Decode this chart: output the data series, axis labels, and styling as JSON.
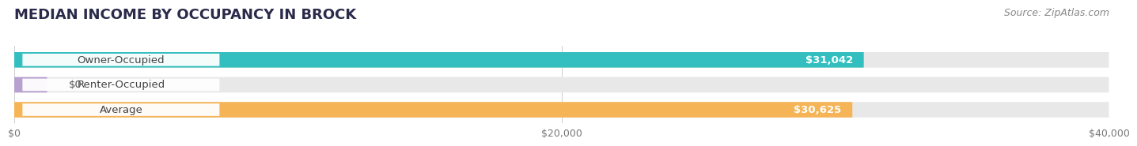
{
  "title": "MEDIAN INCOME BY OCCUPANCY IN BROCK",
  "source": "Source: ZipAtlas.com",
  "categories": [
    "Owner-Occupied",
    "Renter-Occupied",
    "Average"
  ],
  "values": [
    31042,
    0,
    30625
  ],
  "labels": [
    "$31,042",
    "$0",
    "$30,625"
  ],
  "bar_colors": [
    "#33bfbf",
    "#b8a0d0",
    "#f5b455"
  ],
  "track_color": "#e8e8e8",
  "label_box_color": "#f5f5f5",
  "xlim": [
    0,
    40000
  ],
  "xticks": [
    0,
    20000,
    40000
  ],
  "xticklabels": [
    "$0",
    "$20,000",
    "$40,000"
  ],
  "background_color": "#ffffff",
  "title_fontsize": 13,
  "label_fontsize": 9.5,
  "tick_fontsize": 9,
  "source_fontsize": 9
}
